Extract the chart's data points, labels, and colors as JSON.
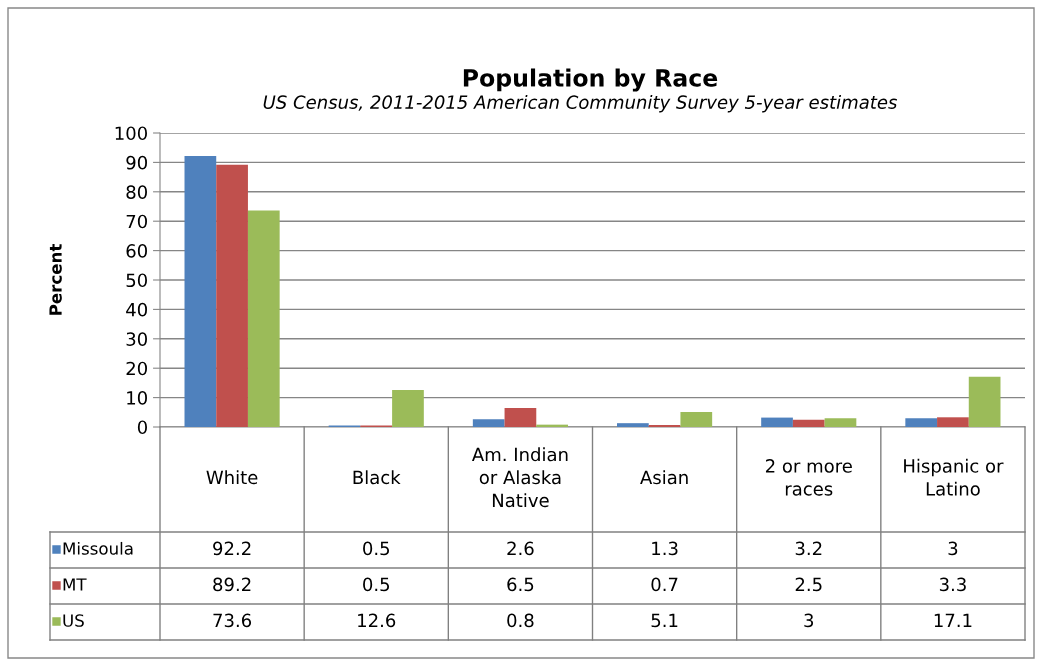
{
  "chart_data": {
    "type": "bar",
    "title": "Population by Race",
    "subtitle": "US Census, 2011-2015 American Community Survey 5-year estimates",
    "ylabel": "Percent",
    "categories": [
      "White",
      "Black",
      "Am. Indian\nor Alaska\nNative",
      "Asian",
      "2 or more\nraces",
      "Hispanic or\nLatino"
    ],
    "series": [
      {
        "name": "Missoula",
        "color": "#4f81bd",
        "values": [
          92.2,
          0.5,
          2.6,
          1.3,
          3.2,
          3
        ]
      },
      {
        "name": "MT",
        "color": "#c0504d",
        "values": [
          89.2,
          0.5,
          6.5,
          0.7,
          2.5,
          3.3
        ]
      },
      {
        "name": "US",
        "color": "#9bbb59",
        "values": [
          73.6,
          12.6,
          0.8,
          5.1,
          3,
          17.1
        ]
      }
    ],
    "ylim": [
      0,
      100
    ],
    "yticks": [
      0,
      10,
      20,
      30,
      40,
      50,
      60,
      70,
      80,
      90,
      100
    ],
    "grid": "y",
    "data_labels": true,
    "legend": "bottom left"
  }
}
